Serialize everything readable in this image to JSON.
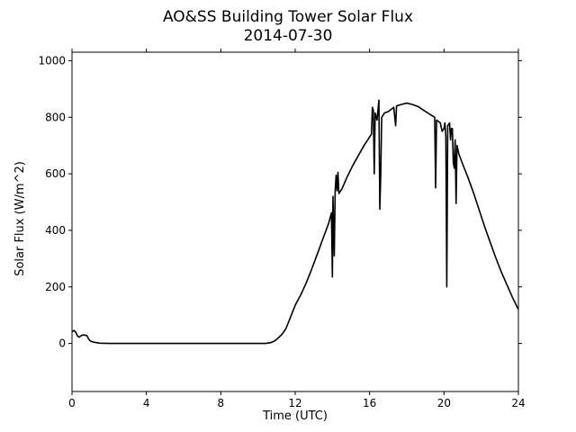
{
  "chart_data": {
    "type": "line",
    "title": "AO&SS Building Tower Solar Flux",
    "subtitle": "2014-07-30",
    "xlabel": "Time (UTC)",
    "ylabel": "Solar Flux (W/m^2)",
    "xlim": [
      0,
      24
    ],
    "ylim": [
      -170,
      1030
    ],
    "xticks": [
      0,
      4,
      8,
      12,
      16,
      20,
      24
    ],
    "yticks": [
      0,
      200,
      400,
      600,
      800,
      1000
    ],
    "grid": false,
    "series": [
      {
        "color": "#000000",
        "points": [
          [
            0.0,
            42
          ],
          [
            0.1,
            46
          ],
          [
            0.2,
            40
          ],
          [
            0.3,
            26
          ],
          [
            0.4,
            22
          ],
          [
            0.5,
            28
          ],
          [
            0.6,
            30
          ],
          [
            0.8,
            28
          ],
          [
            0.9,
            15
          ],
          [
            1.0,
            8
          ],
          [
            1.2,
            4
          ],
          [
            1.5,
            1
          ],
          [
            2.0,
            0
          ],
          [
            6.0,
            0
          ],
          [
            10.4,
            0
          ],
          [
            10.7,
            3
          ],
          [
            10.9,
            9
          ],
          [
            11.1,
            20
          ],
          [
            11.3,
            33
          ],
          [
            11.5,
            52
          ],
          [
            11.7,
            85
          ],
          [
            12.0,
            135
          ],
          [
            12.3,
            172
          ],
          [
            12.6,
            215
          ],
          [
            12.9,
            265
          ],
          [
            13.2,
            318
          ],
          [
            13.5,
            372
          ],
          [
            13.8,
            425
          ],
          [
            13.95,
            462
          ],
          [
            14.0,
            235
          ],
          [
            14.03,
            520
          ],
          [
            14.1,
            310
          ],
          [
            14.15,
            540
          ],
          [
            14.2,
            595
          ],
          [
            14.25,
            540
          ],
          [
            14.3,
            605
          ],
          [
            14.35,
            530
          ],
          [
            14.5,
            545
          ],
          [
            14.8,
            590
          ],
          [
            15.1,
            630
          ],
          [
            15.4,
            665
          ],
          [
            15.7,
            700
          ],
          [
            15.9,
            720
          ],
          [
            16.0,
            730
          ],
          [
            16.1,
            740
          ],
          [
            16.15,
            835
          ],
          [
            16.2,
            825
          ],
          [
            16.25,
            600
          ],
          [
            16.3,
            815
          ],
          [
            16.4,
            790
          ],
          [
            16.5,
            860
          ],
          [
            16.55,
            475
          ],
          [
            16.6,
            600
          ],
          [
            16.65,
            800
          ],
          [
            16.8,
            815
          ],
          [
            17.0,
            820
          ],
          [
            17.2,
            830
          ],
          [
            17.3,
            835
          ],
          [
            17.4,
            770
          ],
          [
            17.45,
            840
          ],
          [
            17.7,
            845
          ],
          [
            18.0,
            850
          ],
          [
            18.3,
            845
          ],
          [
            18.6,
            838
          ],
          [
            18.9,
            825
          ],
          [
            19.2,
            812
          ],
          [
            19.5,
            800
          ],
          [
            19.55,
            550
          ],
          [
            19.6,
            790
          ],
          [
            19.8,
            780
          ],
          [
            19.9,
            750
          ],
          [
            20.0,
            760
          ],
          [
            20.05,
            780
          ],
          [
            20.1,
            730
          ],
          [
            20.15,
            200
          ],
          [
            20.2,
            770
          ],
          [
            20.25,
            775
          ],
          [
            20.3,
            780
          ],
          [
            20.35,
            720
          ],
          [
            20.4,
            760
          ],
          [
            20.45,
            760
          ],
          [
            20.5,
            640
          ],
          [
            20.55,
            620
          ],
          [
            20.6,
            720
          ],
          [
            20.65,
            495
          ],
          [
            20.7,
            700
          ],
          [
            20.8,
            670
          ],
          [
            21.0,
            635
          ],
          [
            21.3,
            585
          ],
          [
            21.6,
            530
          ],
          [
            21.9,
            470
          ],
          [
            22.2,
            410
          ],
          [
            22.5,
            355
          ],
          [
            22.8,
            300
          ],
          [
            23.1,
            250
          ],
          [
            23.4,
            205
          ],
          [
            23.7,
            160
          ],
          [
            24.0,
            120
          ]
        ]
      }
    ]
  }
}
